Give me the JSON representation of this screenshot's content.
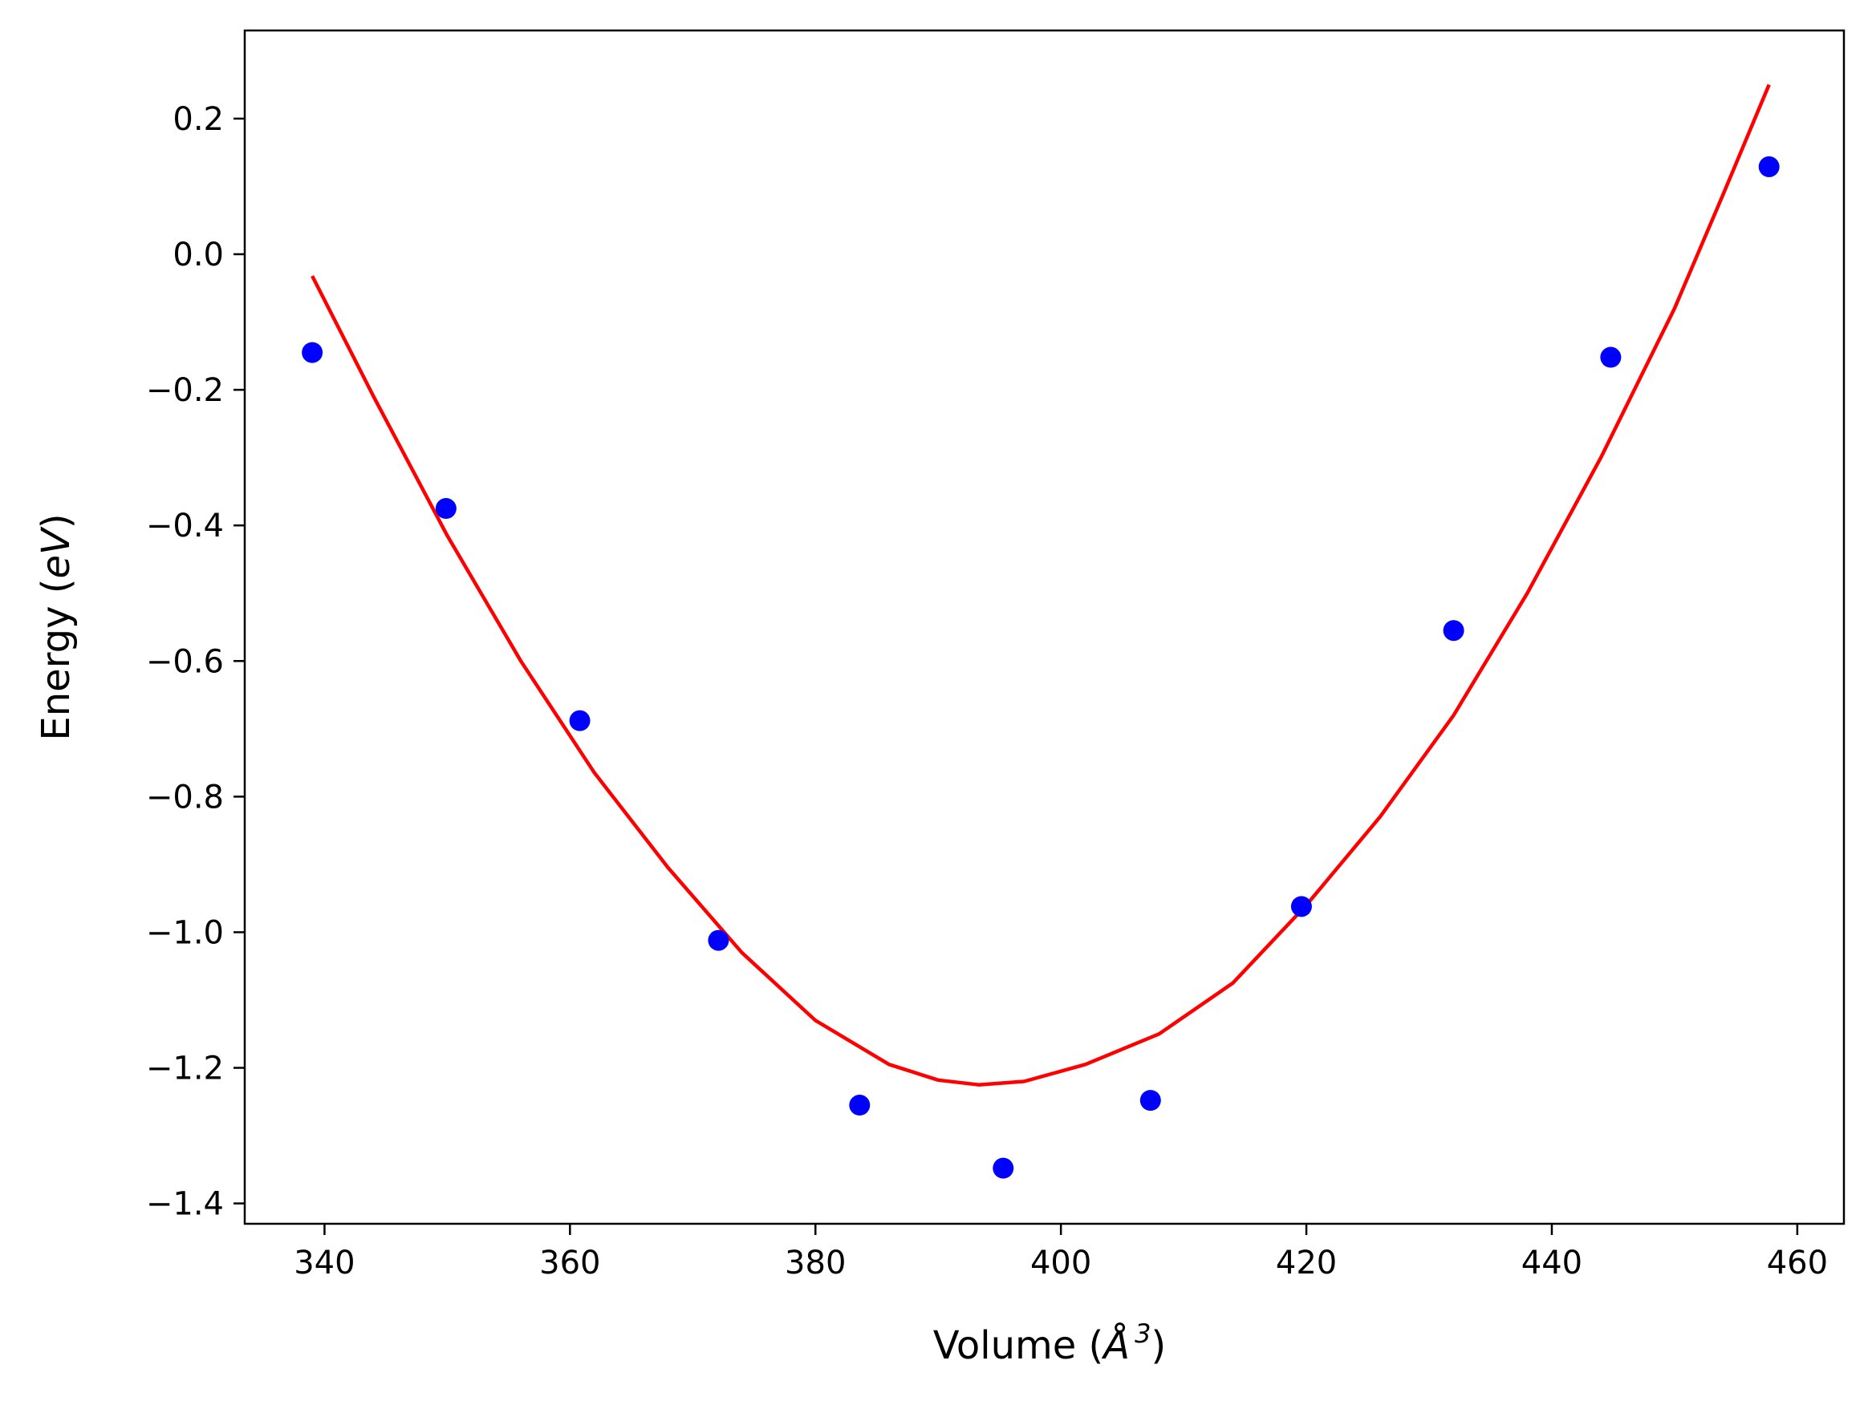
{
  "chart_data": {
    "type": "scatter",
    "title": "",
    "xlabel": {
      "prefix": "Volume (",
      "symbol": "Å",
      "exponent": "3",
      "suffix": ")"
    },
    "ylabel": {
      "prefix": "Energy (",
      "unit": "eV",
      "suffix": ")"
    },
    "xlim": [
      333.5,
      463.8
    ],
    "ylim": [
      -1.43,
      0.33
    ],
    "xticks": [
      340,
      360,
      380,
      400,
      420,
      440,
      460
    ],
    "yticks": [
      0.2,
      0.0,
      -0.2,
      -0.4,
      -0.6,
      -0.8,
      -1.0,
      -1.2,
      -1.4
    ],
    "xtick_labels": [
      "340",
      "360",
      "380",
      "400",
      "420",
      "440",
      "460"
    ],
    "ytick_labels": [
      "0.2",
      "0.0",
      "−0.2",
      "−0.4",
      "−0.6",
      "−0.8",
      "−1.0",
      "−1.2",
      "−1.4"
    ],
    "grid": false,
    "series": [
      {
        "kind": "points",
        "color": "#0000ff",
        "x": [
          339.0,
          349.9,
          360.8,
          372.1,
          383.6,
          395.3,
          407.3,
          419.6,
          432.0,
          444.8,
          457.7
        ],
        "y": [
          -0.145,
          -0.375,
          -0.688,
          -1.012,
          -1.255,
          -1.348,
          -1.248,
          -0.962,
          -0.555,
          -0.152,
          0.129
        ]
      },
      {
        "kind": "line",
        "color": "#ff0000",
        "x": [
          339.0,
          344.0,
          350.0,
          356.0,
          362.0,
          368.0,
          374.0,
          380.0,
          386.0,
          390.0,
          393.3,
          397.0,
          402.0,
          408.0,
          414.0,
          420.0,
          426.0,
          432.0,
          438.0,
          444.0,
          450.0,
          454.0,
          457.7
        ],
        "y": [
          -0.032,
          -0.21,
          -0.415,
          -0.6,
          -0.765,
          -0.905,
          -1.03,
          -1.13,
          -1.195,
          -1.218,
          -1.225,
          -1.22,
          -1.195,
          -1.15,
          -1.075,
          -0.96,
          -0.83,
          -0.68,
          -0.5,
          -0.3,
          -0.08,
          0.09,
          0.25
        ]
      }
    ]
  }
}
